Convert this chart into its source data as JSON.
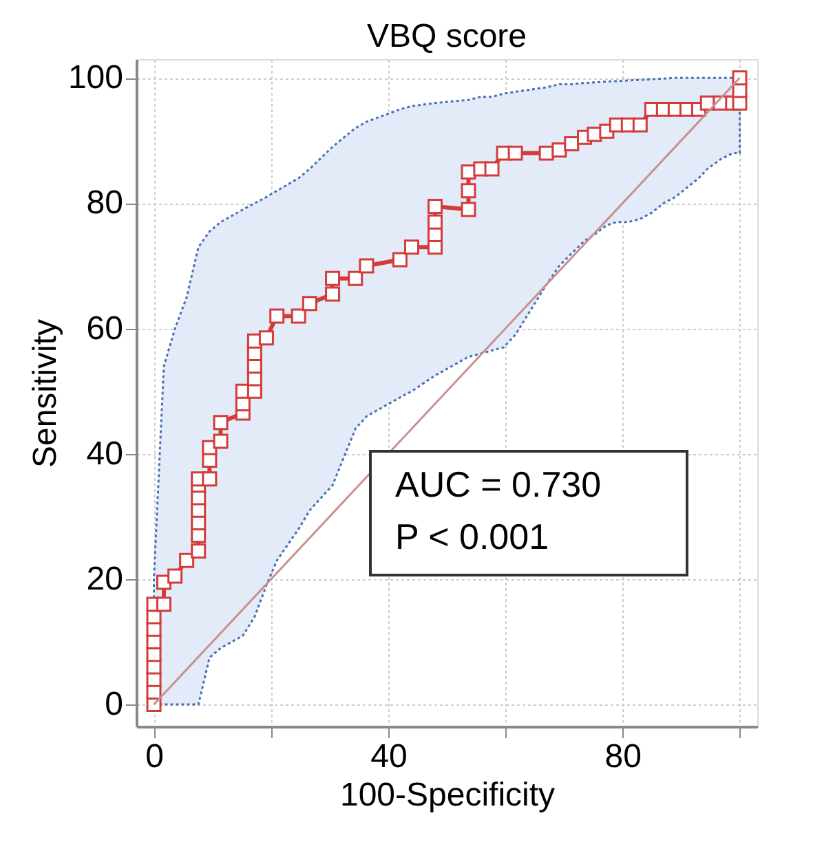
{
  "chart_data": {
    "type": "line",
    "title": "VBQ score",
    "xlabel": "100-Specificity",
    "ylabel": "Sensitivity",
    "xlim": [
      -3,
      103
    ],
    "ylim": [
      -3.5,
      103
    ],
    "xticks": [
      0,
      {
        "value": 20,
        "label": null
      },
      40,
      {
        "value": 60,
        "label": null
      },
      80,
      {
        "value": 100,
        "label": null
      }
    ],
    "yticks": [
      0,
      20,
      40,
      60,
      80,
      100
    ],
    "grid": true,
    "annotations": [
      "AUC = 0.730",
      "P < 0.001"
    ],
    "series": [
      {
        "type": "line",
        "color": "#d43c3c",
        "marker": "square",
        "x": [
          0,
          0,
          0,
          0,
          0,
          0,
          0,
          0,
          0,
          1.7,
          1.7,
          3.6,
          5.6,
          7.6,
          7.6,
          7.6,
          7.6,
          7.6,
          7.6,
          7.6,
          9.5,
          9.5,
          9.5,
          11.4,
          11.4,
          15.2,
          15.2,
          15.2,
          17.2,
          17.2,
          17.2,
          17.2,
          17.2,
          19.2,
          21,
          24.7,
          26.6,
          30.5,
          30.5,
          34.4,
          36.3,
          42,
          44,
          48,
          48,
          48,
          48,
          53.7,
          53.7,
          53.7,
          55.8,
          57.7,
          59.7,
          61.7,
          67,
          69.2,
          71.3,
          73.5,
          75.2,
          77.3,
          79,
          81,
          83,
          85,
          87,
          89,
          91,
          93,
          94.5,
          96.7,
          98.8,
          100,
          100,
          100
        ],
        "values": [
          0,
          2,
          4,
          6,
          8,
          10,
          12,
          14,
          16,
          16,
          19.5,
          20.5,
          23,
          24.5,
          27,
          29,
          31,
          33,
          35,
          36,
          36,
          39,
          41,
          42,
          45,
          46.5,
          48,
          50,
          50,
          52,
          54,
          56,
          58,
          58.5,
          62,
          62,
          64,
          65.5,
          68,
          68,
          70,
          71,
          73,
          73,
          75,
          77,
          79.5,
          79,
          82,
          85,
          85.5,
          85.5,
          88,
          88,
          88,
          88.5,
          89.5,
          90.5,
          91,
          91.5,
          92.5,
          92.5,
          92.5,
          95,
          95,
          95,
          95,
          95,
          96,
          96,
          96,
          96,
          98,
          100
        ],
        "lower": [
          0,
          0,
          0,
          0,
          0,
          0,
          0,
          0,
          0,
          0,
          0,
          0,
          0,
          0,
          0,
          0,
          0,
          0,
          0,
          0,
          7.5,
          7.5,
          7.5,
          9,
          9,
          11,
          11,
          11,
          14,
          14,
          14,
          14,
          14,
          19,
          23,
          28,
          31,
          35,
          35,
          44,
          46,
          49,
          50,
          52.5,
          52.5,
          52.5,
          52.5,
          55.5,
          55.5,
          55.5,
          56,
          56.5,
          57,
          59,
          67,
          70,
          72,
          74,
          75,
          76.5,
          77,
          77,
          77.5,
          78.5,
          80,
          81,
          82.5,
          84,
          85.5,
          87,
          88,
          88,
          92,
          95
        ],
        "upper": [
          20,
          20,
          20,
          20,
          20,
          20,
          20,
          20,
          20,
          54,
          54,
          60,
          65,
          73,
          73,
          73,
          73,
          73,
          73,
          73,
          75.5,
          75.5,
          75.5,
          77,
          77,
          79,
          79,
          79,
          80,
          80,
          80,
          80,
          80,
          81,
          82,
          84,
          85.5,
          89,
          89,
          92,
          93,
          95,
          95.5,
          96,
          96,
          96,
          96,
          96.5,
          96.5,
          96.5,
          97,
          97,
          97.5,
          97.8,
          98.5,
          99,
          99,
          99.2,
          99.3,
          99.4,
          99.5,
          99.6,
          99.7,
          99.8,
          99.9,
          100,
          100,
          100,
          100,
          100,
          100,
          100,
          100,
          100
        ]
      },
      {
        "type": "line",
        "color": "#c99090",
        "marker": "none",
        "x": [
          0,
          100
        ],
        "values": [
          0,
          100
        ]
      }
    ]
  }
}
